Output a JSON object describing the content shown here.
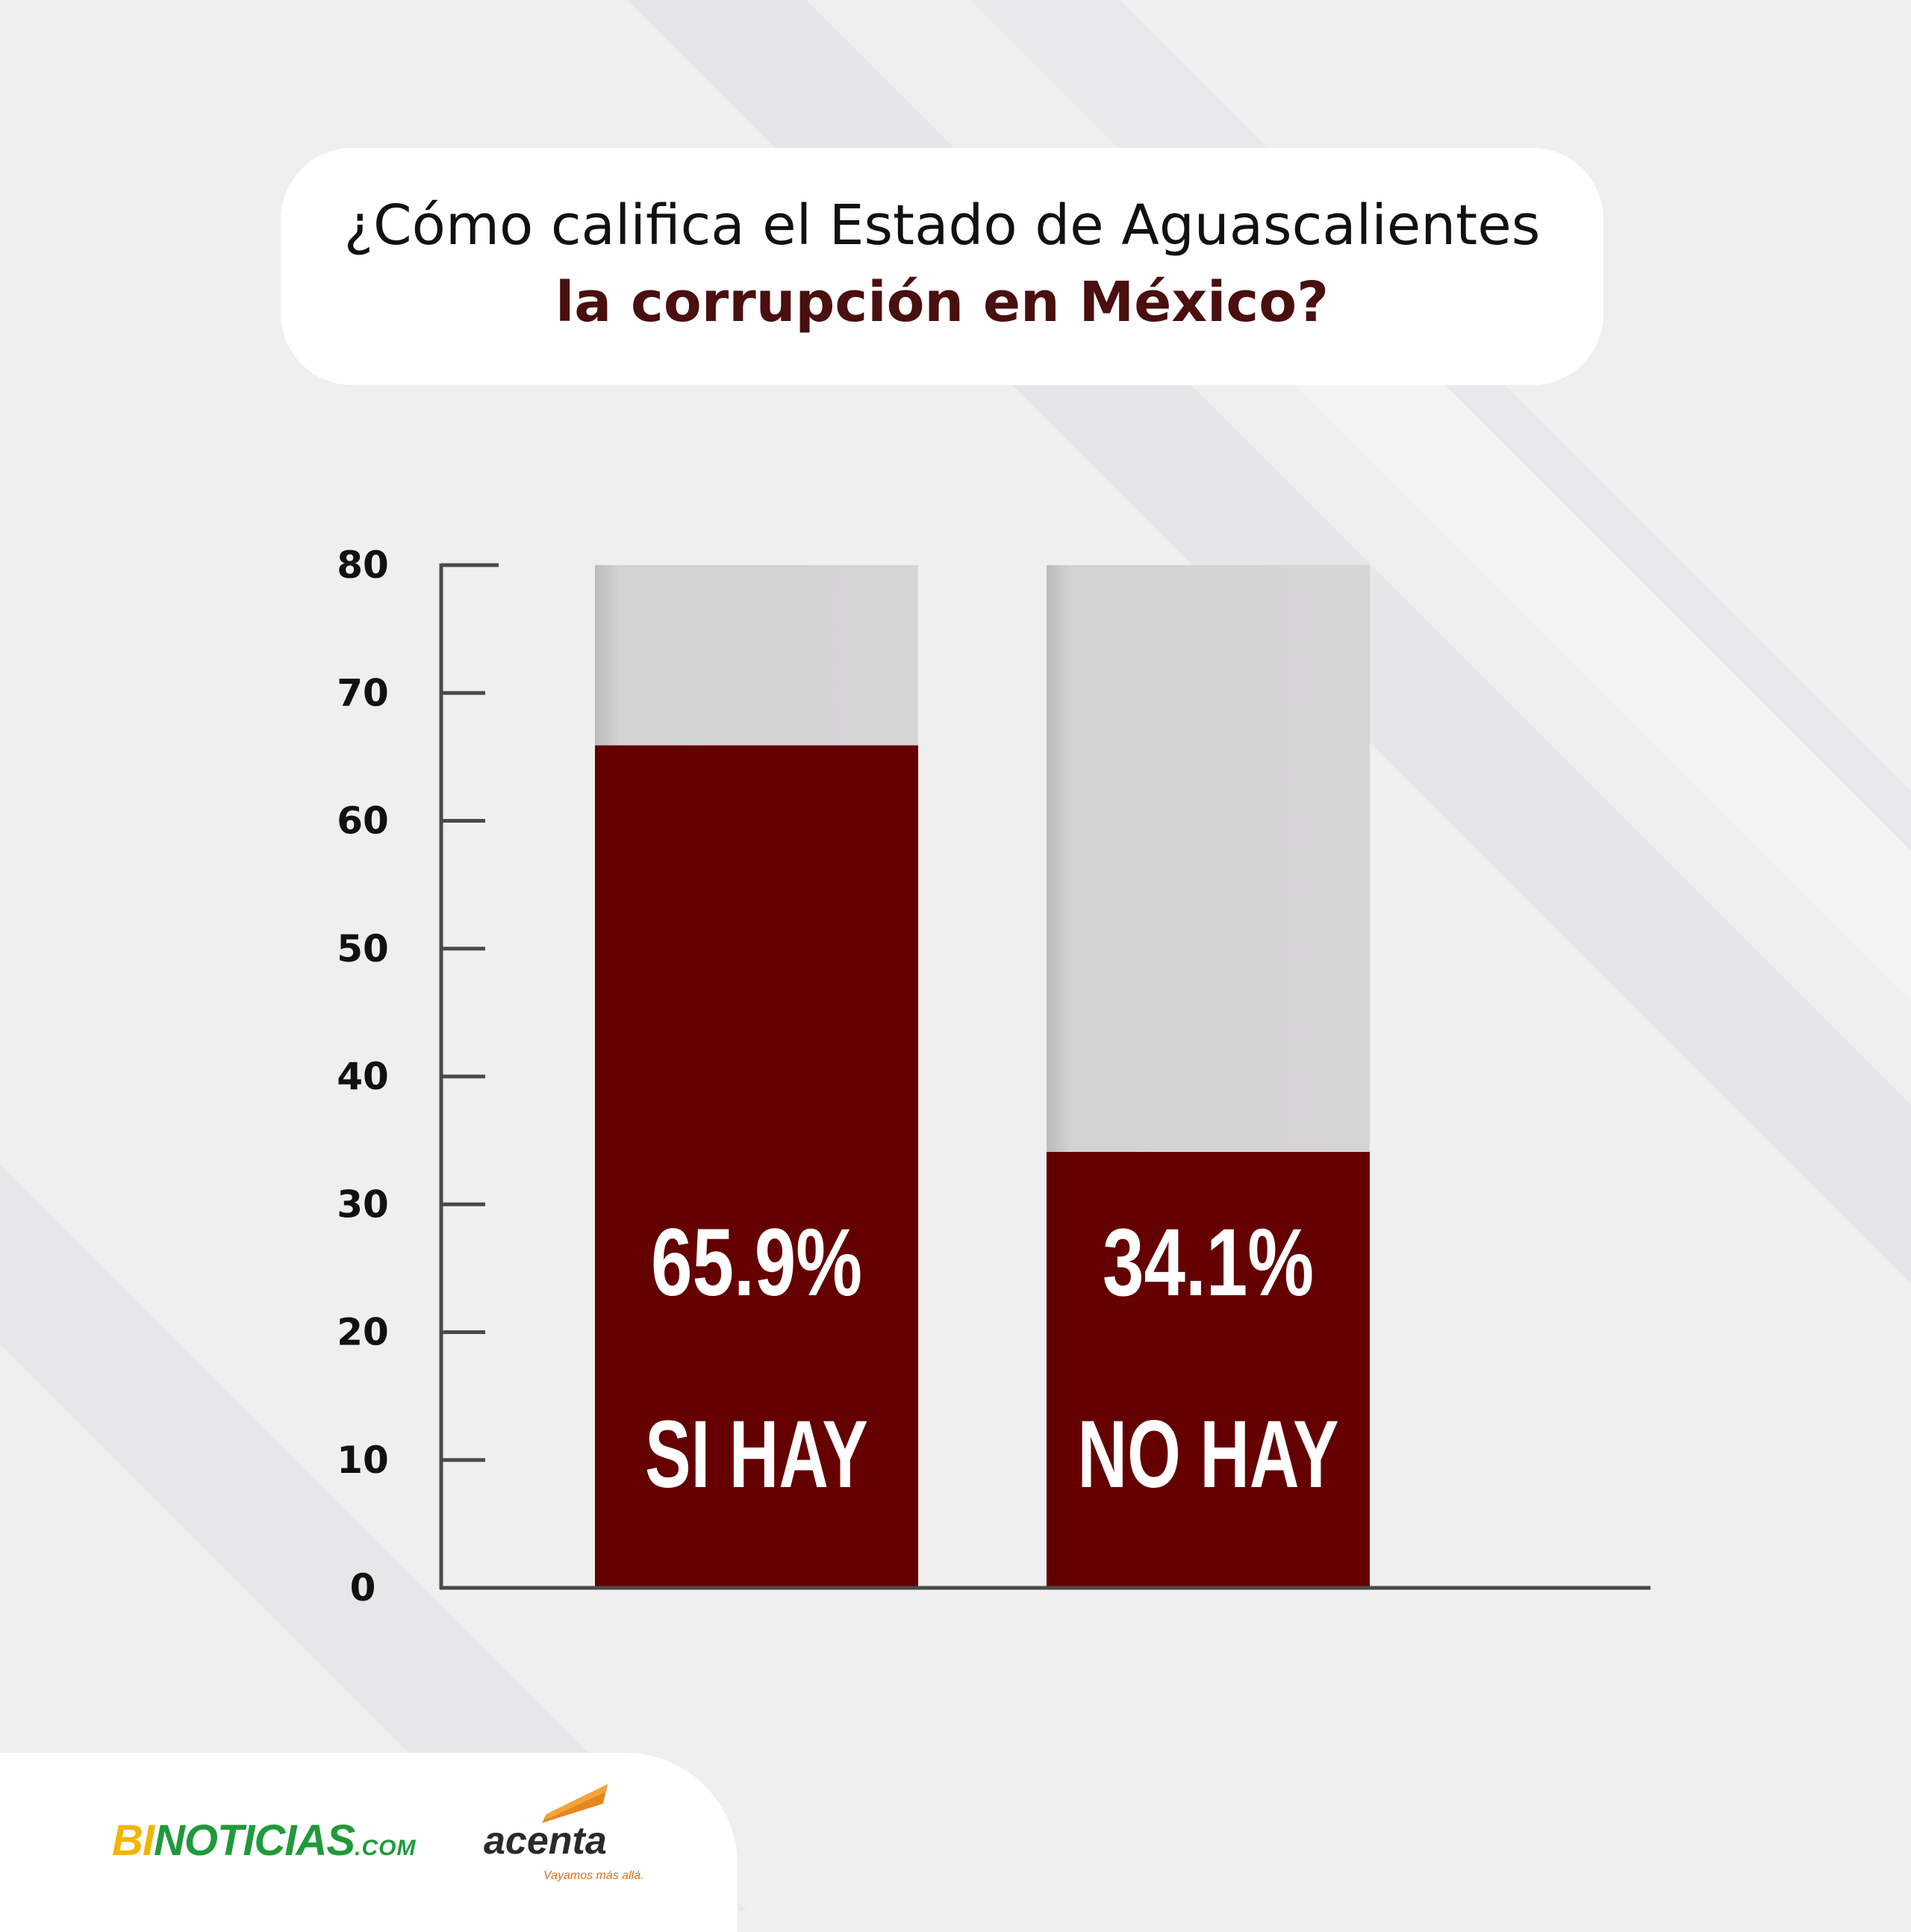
{
  "title": {
    "line1": "¿Cómo califica el Estado de Aguascalientes",
    "line2": "la corrupción en México?"
  },
  "chart_data": {
    "type": "bar",
    "categories": [
      "SI HAY",
      "NO HAY"
    ],
    "values": [
      65.9,
      34.1
    ],
    "value_labels": [
      "65.9%",
      "34.1%"
    ],
    "ylim": [
      0,
      80
    ],
    "yticks": [
      0,
      10,
      20,
      30,
      40,
      50,
      60,
      70,
      80
    ],
    "xlabel": "",
    "ylabel": "",
    "grid": false,
    "colors": {
      "bar": "#650000",
      "track": "#d3d2d3",
      "axis": "#4a4a4a",
      "label": "#ffffff",
      "tick": "#111111"
    }
  },
  "footer": {
    "logo_bi": "BI",
    "logo_noticias": "NOTICIAS",
    "logo_com": ".COM",
    "logo_acenta": "acenta",
    "acenta_tagline": "Vayamos más allá."
  }
}
